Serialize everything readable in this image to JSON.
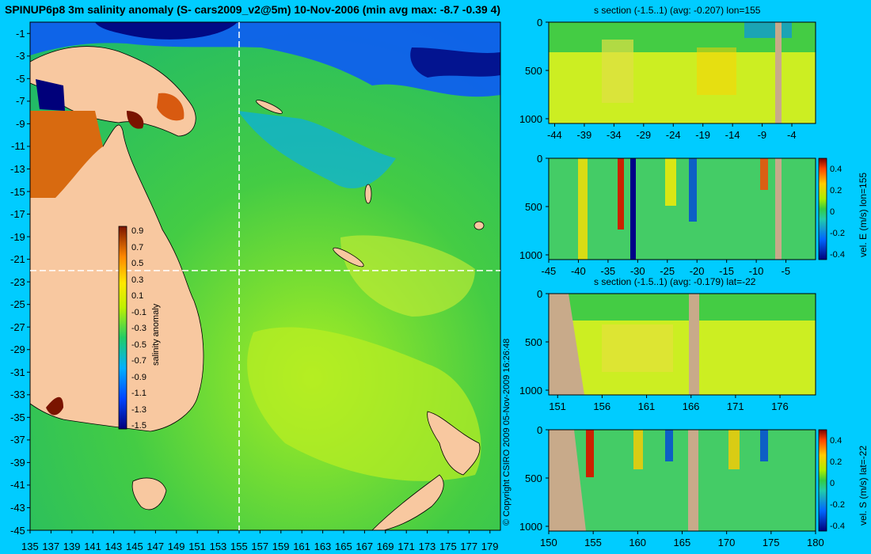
{
  "title": "SPINUP6p8 3m salinity anomaly (S- cars2009_v2@5m) 10-Nov-2006 (min avg max: -8.7 -0.39 4)",
  "copyright": "© Copyright CSIRO 2009   05-Nov-2009 16:26:48",
  "colors": {
    "background": "#00ccff",
    "land": "#f8c8a0",
    "section_land": "#c8aa8a"
  },
  "map": {
    "x_ticks": [
      "135",
      "137",
      "139",
      "141",
      "143",
      "145",
      "147",
      "149",
      "151",
      "153",
      "155",
      "157",
      "159",
      "161",
      "163",
      "165",
      "167",
      "169",
      "171",
      "173",
      "175",
      "177",
      "179"
    ],
    "y_ticks": [
      "-1",
      "-3",
      "-5",
      "-7",
      "-9",
      "-11",
      "-13",
      "-15",
      "-17",
      "-19",
      "-21",
      "-23",
      "-25",
      "-27",
      "-29",
      "-31",
      "-33",
      "-35",
      "-37",
      "-39",
      "-41",
      "-43",
      "-45"
    ],
    "section_lon": 155,
    "section_lat": -22,
    "colorbar": {
      "label": "salinity anomaly",
      "ticks": [
        "0.9",
        "0.7",
        "0.5",
        "0.3",
        "0.1",
        "-0.1",
        "-0.3",
        "-0.5",
        "-0.7",
        "-0.9",
        "-1.1",
        "-1.3",
        "-1.5"
      ]
    }
  },
  "panels": [
    {
      "title": "s section (-1.5..1) (avg: -0.207) lon=155",
      "x_ticks": [
        "-44",
        "-39",
        "-34",
        "-29",
        "-24",
        "-19",
        "-14",
        "-9",
        "-4"
      ],
      "y_ticks": [
        "0",
        "500",
        "1000"
      ]
    },
    {
      "title": "",
      "x_ticks": [
        "-45",
        "-40",
        "-35",
        "-30",
        "-25",
        "-20",
        "-15",
        "-10",
        "-5"
      ],
      "y_ticks": [
        "0",
        "500",
        "1000"
      ],
      "colorbar": {
        "label": "vel. E (m/s) lon=155",
        "ticks": [
          "0.4",
          "0.2",
          "0",
          "-0.2",
          "-0.4"
        ]
      }
    },
    {
      "title": "s section (-1.5..1) (avg: -0.179) lat=-22",
      "x_ticks": [
        "151",
        "156",
        "161",
        "166",
        "171",
        "176"
      ],
      "y_ticks": [
        "0",
        "500",
        "1000"
      ]
    },
    {
      "title": "",
      "x_ticks": [
        "150",
        "155",
        "160",
        "165",
        "170",
        "175",
        "180"
      ],
      "y_ticks": [
        "0",
        "500",
        "1000"
      ],
      "colorbar": {
        "label": "vel. S (m/s) lat=-22",
        "ticks": [
          "0.4",
          "0.2",
          "0",
          "-0.2",
          "-0.4"
        ]
      }
    }
  ],
  "chart_data": [
    {
      "type": "heatmap",
      "title": "SPINUP6p8 3m salinity anomaly (S- cars2009_v2@5m) 10-Nov-2006 (min avg max: -8.7 -0.39 4)",
      "xlabel": "",
      "ylabel": "",
      "xlim": [
        135,
        180
      ],
      "ylim": [
        -45,
        0
      ],
      "colorbar": {
        "label": "salinity anomaly",
        "range": [
          -1.5,
          1.0
        ]
      }
    },
    {
      "type": "heatmap",
      "title": "s section (-1.5..1) (avg: -0.207) lon=155",
      "xlim": [
        -45,
        0
      ],
      "ylim": [
        1000,
        0
      ]
    },
    {
      "type": "heatmap",
      "title": "",
      "xlim": [
        -45,
        0
      ],
      "ylim": [
        1000,
        0
      ],
      "colorbar": {
        "label": "vel. E (m/s) lon=155",
        "range": [
          -0.4,
          0.5
        ]
      }
    },
    {
      "type": "heatmap",
      "title": "s section (-1.5..1) (avg: -0.179) lat=-22",
      "xlim": [
        150,
        180
      ],
      "ylim": [
        1000,
        0
      ]
    },
    {
      "type": "heatmap",
      "title": "",
      "xlim": [
        150,
        180
      ],
      "ylim": [
        1000,
        0
      ],
      "colorbar": {
        "label": "vel. S (m/s) lat=-22",
        "range": [
          -0.4,
          0.5
        ]
      }
    }
  ]
}
